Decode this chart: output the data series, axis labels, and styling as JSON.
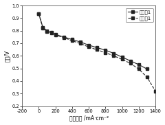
{
  "title": "",
  "xlabel": "电流密度 /mA·cm⁻²",
  "ylabel": "电压/V",
  "xlim": [
    -200,
    1400
  ],
  "ylim": [
    0.2,
    1.0
  ],
  "xticks": [
    -200,
    0,
    200,
    400,
    600,
    800,
    1000,
    1200,
    1400
  ],
  "yticks": [
    0.2,
    0.3,
    0.4,
    0.5,
    0.6,
    0.7,
    0.8,
    0.9,
    1.0
  ],
  "series1_label": "未处理1",
  "series2_label": "处理列1",
  "series1_x": [
    0,
    50,
    100,
    150,
    200,
    300,
    400,
    500,
    600,
    700,
    800,
    900,
    1000,
    1100,
    1200,
    1300
  ],
  "series1_y": [
    0.935,
    0.825,
    0.8,
    0.785,
    0.77,
    0.75,
    0.73,
    0.71,
    0.685,
    0.665,
    0.645,
    0.62,
    0.59,
    0.56,
    0.53,
    0.495
  ],
  "series2_x": [
    0,
    50,
    100,
    150,
    200,
    300,
    400,
    500,
    600,
    700,
    800,
    900,
    1000,
    1100,
    1200,
    1300,
    1400
  ],
  "series2_y": [
    0.935,
    0.82,
    0.795,
    0.78,
    0.765,
    0.745,
    0.72,
    0.698,
    0.67,
    0.648,
    0.625,
    0.6,
    0.572,
    0.54,
    0.495,
    0.43,
    0.32
  ],
  "line_color": "#222222",
  "marker": "s",
  "markersize": 2.5,
  "linewidth": 0.8,
  "legend_fontsize": 5.0,
  "axis_label_fontsize": 5.5,
  "tick_fontsize": 4.8,
  "background_color": "#ffffff"
}
